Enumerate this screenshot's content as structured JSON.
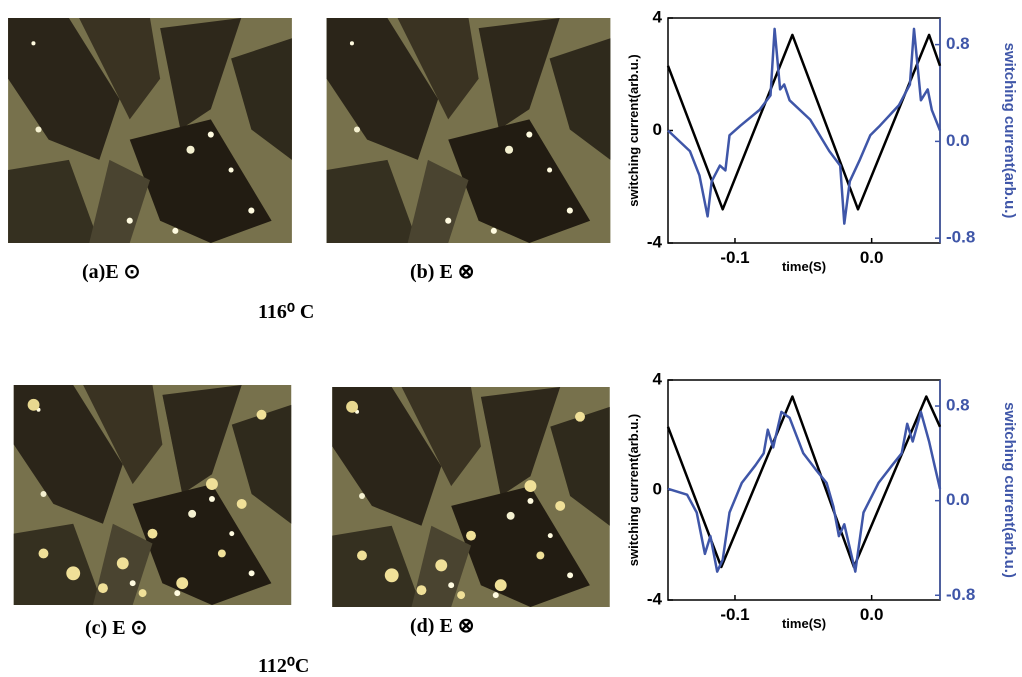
{
  "chart_data": [
    {
      "type": "line",
      "xlabel": "time(S)",
      "ylabel": "switching current(arb.u.)",
      "y2label": "switching current(arb.u.)",
      "xlim": [
        -0.149,
        0.05
      ],
      "xticks": [
        -0.1,
        {
          "value": 0,
          "label": "0.0"
        }
      ],
      "ylim": [
        -4,
        4
      ],
      "yticks": [
        -4,
        0,
        4
      ],
      "y2lim": [
        -0.84,
        1.02
      ],
      "y2ticks": [
        -0.8,
        {
          "value": 0,
          "label": "0.0"
        },
        0.8
      ],
      "series": [
        {
          "color": "#000000",
          "x": [
            -0.149,
            -0.109,
            -0.058,
            -0.01,
            0.042,
            0.05
          ],
          "values": [
            2.3,
            -2.8,
            3.4,
            -2.8,
            3.4,
            2.3
          ]
        },
        {
          "color": "#3f56a8",
          "axis": "y2",
          "x": [
            -0.149,
            -0.133,
            -0.126,
            -0.12,
            -0.117,
            -0.111,
            -0.107,
            -0.104,
            -0.096,
            -0.082,
            -0.074,
            -0.071,
            -0.067,
            -0.064,
            -0.06,
            -0.045,
            -0.031,
            -0.023,
            -0.02,
            -0.016,
            -0.009,
            -0.001,
            0.006,
            0.02,
            0.028,
            0.031,
            0.036,
            0.041,
            0.044,
            0.05
          ],
          "values": [
            0.09,
            -0.08,
            -0.28,
            -0.62,
            -0.33,
            -0.2,
            -0.24,
            0.05,
            0.13,
            0.26,
            0.38,
            0.93,
            0.43,
            0.47,
            0.34,
            0.18,
            -0.08,
            -0.2,
            -0.68,
            -0.33,
            -0.16,
            0.05,
            0.13,
            0.3,
            0.47,
            0.93,
            0.34,
            0.43,
            0.26,
            0.09
          ]
        }
      ]
    },
    {
      "type": "line",
      "xlabel": "time(S)",
      "ylabel": "switching current(arb.u.)",
      "y2label": "switching current(arb.u.)",
      "xlim": [
        -0.149,
        0.05
      ],
      "xticks": [
        -0.1,
        {
          "value": 0,
          "label": "0.0"
        }
      ],
      "ylim": [
        -4,
        4
      ],
      "yticks": [
        -4,
        0,
        4
      ],
      "y2lim": [
        -0.84,
        1.02
      ],
      "y2ticks": [
        -0.8,
        {
          "value": 0,
          "label": "0.0"
        },
        0.8
      ],
      "series": [
        {
          "color": "#000000",
          "x": [
            -0.149,
            -0.11,
            -0.058,
            -0.013,
            0.04,
            0.05
          ],
          "values": [
            2.3,
            -2.8,
            3.4,
            -2.8,
            3.4,
            2.3
          ]
        },
        {
          "color": "#3f56a8",
          "axis": "y2",
          "x": [
            -0.149,
            -0.135,
            -0.128,
            -0.122,
            -0.118,
            -0.113,
            -0.109,
            -0.104,
            -0.095,
            -0.085,
            -0.079,
            -0.076,
            -0.072,
            -0.066,
            -0.06,
            -0.05,
            -0.04,
            -0.033,
            -0.028,
            -0.024,
            -0.02,
            -0.016,
            -0.012,
            -0.006,
            0.005,
            0.015,
            0.022,
            0.026,
            0.03,
            0.036,
            0.042,
            0.046,
            0.05
          ],
          "values": [
            0.1,
            0.05,
            -0.1,
            -0.45,
            -0.3,
            -0.6,
            -0.5,
            -0.1,
            0.15,
            0.3,
            0.4,
            0.6,
            0.45,
            0.75,
            0.7,
            0.4,
            0.25,
            0.15,
            -0.05,
            -0.3,
            -0.2,
            -0.4,
            -0.6,
            -0.1,
            0.15,
            0.3,
            0.4,
            0.65,
            0.5,
            0.75,
            0.5,
            0.3,
            0.1
          ]
        }
      ]
    }
  ],
  "panels": [
    "(a)E ⊙",
    "(b) E ⊗",
    "(c) E ⊙",
    "(d) E ⊗"
  ],
  "temperatures": [
    "116⁰ C",
    "112⁰C"
  ]
}
